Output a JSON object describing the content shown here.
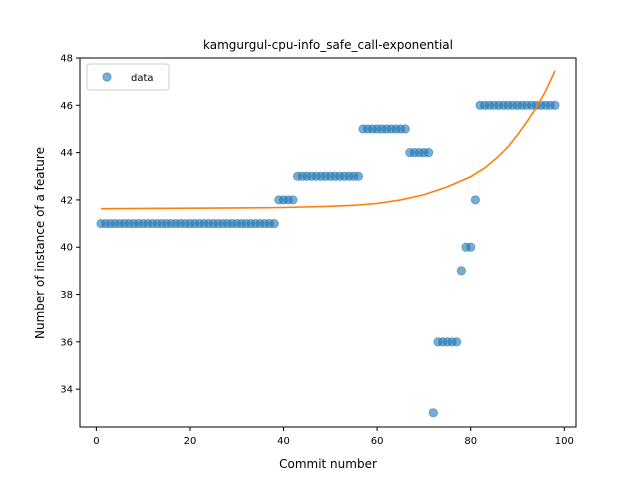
{
  "chart_data": {
    "type": "scatter",
    "title": "kamgurgul-cpu-info_safe_call-exponential",
    "xlabel": "Commit number",
    "ylabel": "Number of instance of a feature",
    "xlim": [
      -3.5,
      102.5
    ],
    "ylim": [
      32.4,
      48.0
    ],
    "xticks": [
      0,
      20,
      40,
      60,
      80,
      100
    ],
    "yticks": [
      34,
      36,
      38,
      40,
      42,
      44,
      46,
      48
    ],
    "legend": {
      "placement": "top-left",
      "entries": [
        "data"
      ]
    },
    "grid": false,
    "colors": {
      "data": "#1f77b4",
      "fit": "#ff7f0e"
    },
    "series": [
      {
        "name": "data",
        "kind": "scatter",
        "x": [
          1,
          2,
          3,
          4,
          5,
          6,
          7,
          8,
          9,
          10,
          11,
          12,
          13,
          14,
          15,
          16,
          17,
          18,
          19,
          20,
          21,
          22,
          23,
          24,
          25,
          26,
          27,
          28,
          29,
          30,
          31,
          32,
          33,
          34,
          35,
          36,
          37,
          38,
          39,
          40,
          41,
          42,
          43,
          44,
          45,
          46,
          47,
          48,
          49,
          50,
          51,
          52,
          53,
          54,
          55,
          56,
          57,
          58,
          59,
          60,
          61,
          62,
          63,
          64,
          65,
          66,
          67,
          68,
          69,
          70,
          71,
          72,
          73,
          74,
          75,
          76,
          77,
          78,
          79,
          80,
          81,
          82,
          83,
          84,
          85,
          86,
          87,
          88,
          89,
          90,
          91,
          92,
          93,
          94,
          95,
          96,
          97,
          98
        ],
        "y": [
          41,
          41,
          41,
          41,
          41,
          41,
          41,
          41,
          41,
          41,
          41,
          41,
          41,
          41,
          41,
          41,
          41,
          41,
          41,
          41,
          41,
          41,
          41,
          41,
          41,
          41,
          41,
          41,
          41,
          41,
          41,
          41,
          41,
          41,
          41,
          41,
          41,
          41,
          42,
          42,
          42,
          42,
          43,
          43,
          43,
          43,
          43,
          43,
          43,
          43,
          43,
          43,
          43,
          43,
          43,
          43,
          45,
          45,
          45,
          45,
          45,
          45,
          45,
          45,
          45,
          45,
          44,
          44,
          44,
          44,
          44,
          33,
          36,
          36,
          36,
          36,
          36,
          39,
          40,
          40,
          42,
          46,
          46,
          46,
          46,
          46,
          46,
          46,
          46,
          46,
          46,
          46,
          46,
          46,
          46,
          46,
          46,
          46
        ]
      },
      {
        "name": "",
        "kind": "line",
        "x": [
          1,
          10,
          20,
          30,
          40,
          50,
          55,
          60,
          65,
          70,
          75,
          80,
          83,
          86,
          88,
          90,
          92,
          94,
          96,
          98
        ],
        "y": [
          41.63,
          41.64,
          41.65,
          41.66,
          41.68,
          41.73,
          41.77,
          41.85,
          42.0,
          42.22,
          42.55,
          42.98,
          43.35,
          43.85,
          44.25,
          44.75,
          45.3,
          45.9,
          46.6,
          47.45
        ]
      }
    ]
  }
}
